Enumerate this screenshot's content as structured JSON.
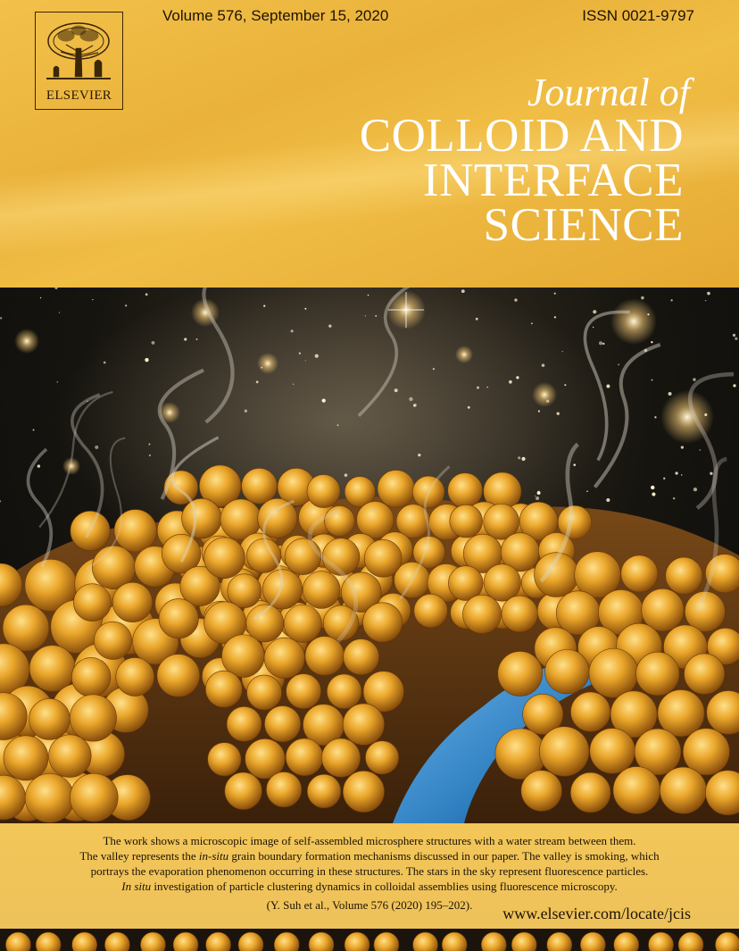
{
  "publisher": {
    "logo_text": "ELSEVIER",
    "logo_icon": "elsevier-tree-icon"
  },
  "header": {
    "volume": "Volume 576, September 15, 2020",
    "issn": "ISSN 0021-9797",
    "journal_of": "Journal of",
    "title_lines": [
      "COLLOID AND",
      "INTERFACE",
      "SCIENCE"
    ]
  },
  "cover_image": {
    "subject": "microsphere-valley-illustration",
    "colors": {
      "sphere": "#e8a82c",
      "water": "#2f7fc0",
      "sky": "#16140f",
      "header": "#eab23a"
    }
  },
  "caption": {
    "line1": "The work shows a microscopic image of self-assembled microsphere structures with a water stream between them.",
    "line2_prefix": "The valley represents the ",
    "line2_italic": "in-situ",
    "line2_suffix": " grain boundary formation mechanisms discussed in our paper. The valley is smoking, which",
    "line3": "portrays the evaporation phenomenon occurring in these structures. The stars in the sky represent fluorescence particles.",
    "line4_italic": "In situ",
    "line4_rest": " investigation of particle clustering dynamics in colloidal assemblies using fluorescence microscopy.",
    "reference": "(Y. Suh et al., Volume 576 (2020) 195–202)."
  },
  "footer": {
    "url": "www.elsevier.com/locate/jcis"
  }
}
